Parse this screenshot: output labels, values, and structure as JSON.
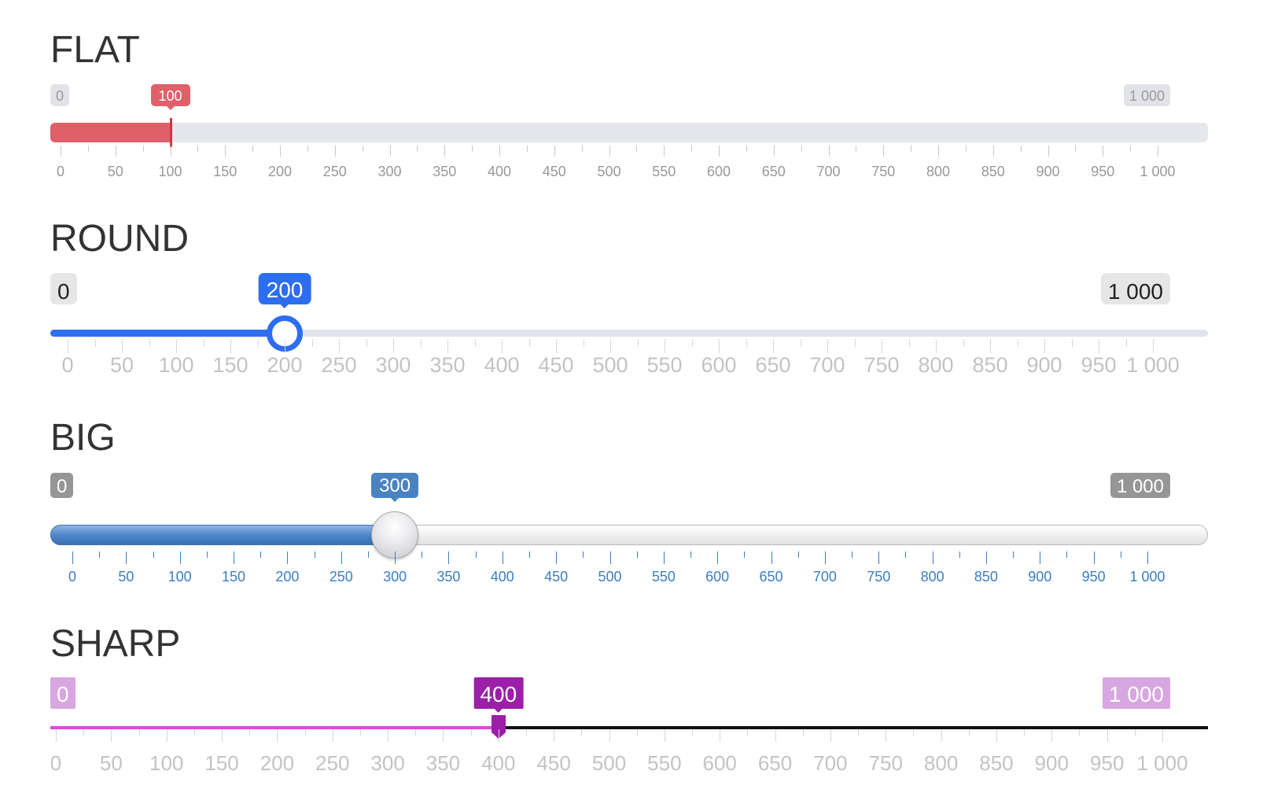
{
  "scale": {
    "min": 0,
    "max": 1000,
    "step": 50
  },
  "sliders": [
    {
      "id": "flat",
      "title": "FLAT",
      "value": 100,
      "min_label": "0",
      "max_label": "1 000",
      "current_label": "100",
      "tick_labels": [
        "0",
        "50",
        "100",
        "150",
        "200",
        "250",
        "300",
        "350",
        "400",
        "450",
        "500",
        "550",
        "600",
        "650",
        "700",
        "750",
        "800",
        "850",
        "900",
        "950",
        "1 000"
      ],
      "accent_color": "#e0606a"
    },
    {
      "id": "round",
      "title": "ROUND",
      "value": 200,
      "min_label": "0",
      "max_label": "1 000",
      "current_label": "200",
      "tick_labels": [
        "0",
        "50",
        "100",
        "150",
        "200",
        "250",
        "300",
        "350",
        "400",
        "450",
        "500",
        "550",
        "600",
        "650",
        "700",
        "750",
        "800",
        "850",
        "900",
        "950",
        "1 000"
      ],
      "accent_color": "#2d6ef0"
    },
    {
      "id": "big",
      "title": "BIG",
      "value": 300,
      "min_label": "0",
      "max_label": "1 000",
      "current_label": "300",
      "tick_labels": [
        "0",
        "50",
        "100",
        "150",
        "200",
        "250",
        "300",
        "350",
        "400",
        "450",
        "500",
        "550",
        "600",
        "650",
        "700",
        "750",
        "800",
        "850",
        "900",
        "950",
        "1 000"
      ],
      "accent_color": "#4a83c0"
    },
    {
      "id": "sharp",
      "title": "SHARP",
      "value": 400,
      "min_label": "0",
      "max_label": "1 000",
      "current_label": "400",
      "tick_labels": [
        "0",
        "50",
        "100",
        "150",
        "200",
        "250",
        "300",
        "350",
        "400",
        "450",
        "500",
        "550",
        "600",
        "650",
        "700",
        "750",
        "800",
        "850",
        "900",
        "950",
        "1 000"
      ],
      "accent_color": "#9b1fa8"
    }
  ]
}
